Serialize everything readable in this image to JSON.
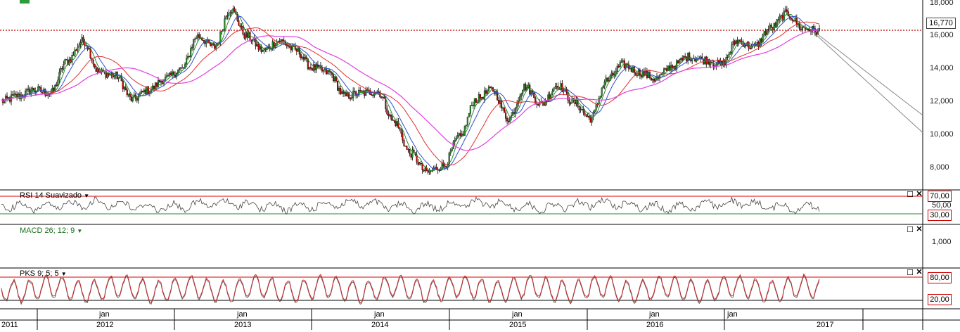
{
  "price_panel": {
    "y_labels": [
      "18,000",
      "16,000",
      "14,000",
      "12,000",
      "10,000",
      "8,000"
    ],
    "last_price": "16,770",
    "colors": {
      "price_line": "#c00000",
      "ma_fast": "#2f4fd0",
      "ma_mid": "#e03030",
      "ma_slow": "#e040e0",
      "ma_green": "#2a8a2a"
    }
  },
  "rsi_panel": {
    "label": "RSI 14 Suavizado",
    "levels": [
      "70,00",
      "50,00",
      "30,00"
    ]
  },
  "macd_panel": {
    "label": "MACD 26; 12; 9",
    "y_labels": [
      "1,000"
    ]
  },
  "pks_panel": {
    "label": "PKS 9; 5; 5",
    "levels": [
      "80,00",
      "20,00"
    ]
  },
  "x_axis": {
    "months": [
      "jan",
      "jan",
      "jan",
      "jan",
      "jan",
      "jan"
    ],
    "years": [
      "2011",
      "2012",
      "2013",
      "2014",
      "2015",
      "2016",
      "2017"
    ]
  },
  "chart_data": {
    "type": "line",
    "series": [
      {
        "values": [
          12.3,
          12.6,
          13.0,
          12.8,
          14.8,
          16.1,
          14.1,
          13.9,
          12.4,
          13.0,
          13.7,
          14.3,
          16.4,
          15.7,
          18.1,
          16.4,
          15.5,
          16.1,
          15.5,
          14.4,
          14.1,
          12.6,
          12.8,
          12.9,
          11.0,
          9.0,
          7.8,
          8.2,
          10.0,
          12.4,
          13.0,
          11.2,
          13.2,
          12.1,
          13.3,
          12.2,
          11.2,
          13.6,
          14.6,
          14.1,
          13.7,
          14.5,
          15.1,
          14.9,
          14.6,
          16.1,
          15.7,
          16.9,
          17.8,
          16.9,
          16.7
        ]
      }
    ],
    "ylim": [
      7.0,
      18.5
    ]
  }
}
